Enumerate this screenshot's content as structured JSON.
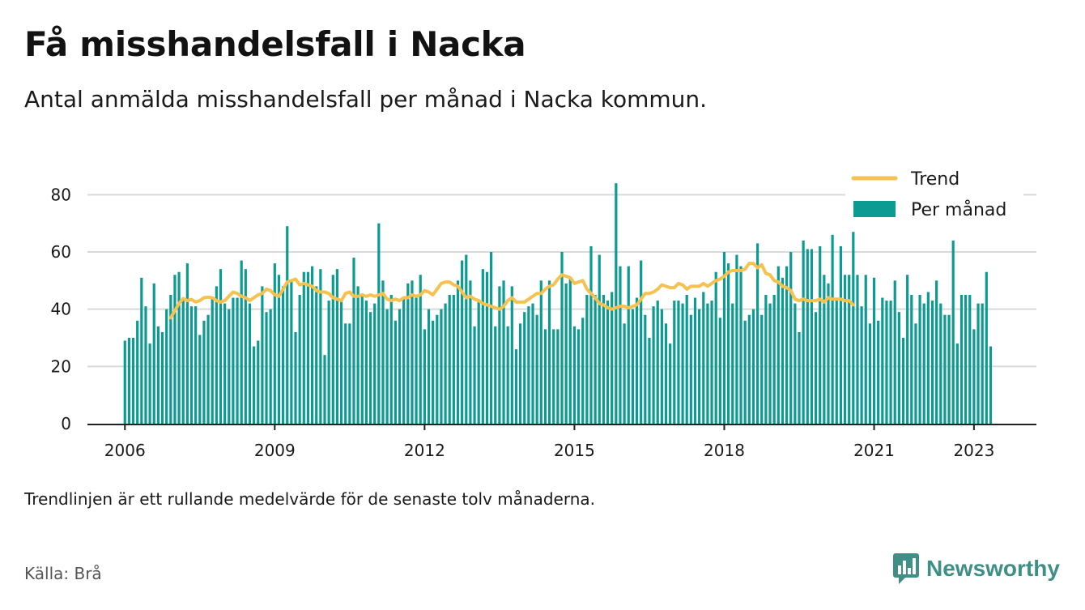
{
  "header": {
    "title": "Få misshandelsfall i Nacka",
    "subtitle": "Antal anmälda misshandelsfall per månad i Nacka kommun."
  },
  "footer": {
    "note": "Trendlinjen är ett rullande medelvärde för de senaste tolv månaderna.",
    "source": "Källa: Brå",
    "brand": "Newsworthy"
  },
  "colors": {
    "bar": "#0b9b92",
    "trend": "#f5c250",
    "grid": "#d9d9d9",
    "axis": "#222222",
    "brand": "#3e8f86"
  },
  "chart_data": {
    "type": "bar",
    "start_month": "2006-01",
    "ylim": [
      0,
      90
    ],
    "yticks": [
      0,
      20,
      40,
      60,
      80
    ],
    "xlim": [
      "2005-04",
      "2024-04"
    ],
    "xticks": [
      {
        "month": "2006-01",
        "label": "2006"
      },
      {
        "month": "2009-01",
        "label": "2009"
      },
      {
        "month": "2012-01",
        "label": "2012"
      },
      {
        "month": "2015-01",
        "label": "2015"
      },
      {
        "month": "2018-01",
        "label": "2018"
      },
      {
        "month": "2021-01",
        "label": "2021"
      },
      {
        "month": "2023-01",
        "label": "2023"
      }
    ],
    "legend": {
      "placement": "top-right",
      "entries": [
        "Trend",
        "Per månad"
      ]
    },
    "grid": true,
    "series": [
      {
        "name": "Per månad",
        "type": "bar",
        "values": [
          29,
          30,
          30,
          36,
          51,
          41,
          28,
          49,
          34,
          32,
          40,
          45,
          52,
          53,
          44,
          56,
          41,
          41,
          31,
          36,
          38,
          44,
          48,
          54,
          42,
          40,
          44,
          44,
          57,
          54,
          42,
          27,
          29,
          48,
          39,
          40,
          56,
          52,
          48,
          69,
          50,
          32,
          45,
          53,
          53,
          55,
          48,
          54,
          24,
          43,
          52,
          54,
          43,
          35,
          35,
          58,
          48,
          45,
          43,
          39,
          42,
          70,
          50,
          40,
          45,
          36,
          40,
          44,
          49,
          50,
          44,
          52,
          33,
          40,
          36,
          38,
          40,
          42,
          45,
          45,
          50,
          57,
          59,
          50,
          34,
          43,
          54,
          53,
          60,
          34,
          48,
          50,
          34,
          48,
          26,
          35,
          39,
          41,
          42,
          38,
          50,
          33,
          50,
          33,
          33,
          60,
          49,
          51,
          34,
          33,
          37,
          45,
          62,
          45,
          59,
          45,
          43,
          46,
          84,
          55,
          35,
          55,
          40,
          44,
          57,
          38,
          30,
          41,
          43,
          40,
          35,
          28,
          43,
          43,
          42,
          45,
          38,
          44,
          40,
          46,
          42,
          43,
          53,
          37,
          60,
          56,
          42,
          59,
          55,
          36,
          38,
          40,
          63,
          38,
          45,
          42,
          45,
          55,
          51,
          55,
          60,
          42,
          32,
          64,
          61,
          61,
          39,
          62,
          52,
          49,
          66,
          43,
          62,
          52,
          52,
          67,
          52,
          41,
          52,
          35,
          51,
          36,
          44,
          43,
          43,
          50,
          39,
          30,
          52,
          45,
          35,
          45,
          42,
          46,
          43,
          50,
          42,
          38,
          38,
          64,
          28,
          45,
          45,
          45,
          33,
          42,
          42,
          53,
          27
        ]
      },
      {
        "name": "Trend",
        "type": "line",
        "start_month": "2006-12",
        "values": [
          37,
          39.5,
          42,
          43.7,
          43,
          43.4,
          42.5,
          43,
          44,
          44.2,
          44,
          43,
          42.5,
          43,
          44.5,
          46,
          45.5,
          44.5,
          44,
          43,
          44,
          45,
          45.5,
          47,
          46.5,
          45,
          44.5,
          47,
          49.5,
          50,
          50.5,
          48.5,
          49,
          48.5,
          48,
          46.5,
          46,
          46,
          45.5,
          44,
          43.5,
          43,
          45.5,
          46,
          44.5,
          44.5,
          45,
          44.5,
          45,
          44.5,
          45,
          45.5,
          43.5,
          43,
          43.5,
          43,
          44,
          44,
          45,
          44.5,
          45,
          46.5,
          46,
          45,
          47,
          49,
          49.5,
          49.5,
          48.5,
          48,
          46,
          44,
          44.5,
          43.5,
          43,
          42,
          41.5,
          41,
          40.5,
          40,
          41,
          43,
          44,
          42.5,
          42.5,
          42.5,
          43.5,
          44.5,
          45.5,
          45.5,
          47,
          48,
          48.5,
          50.5,
          52,
          51.5,
          51,
          49,
          49.5,
          50,
          47,
          45.5,
          44,
          42,
          41.5,
          40.5,
          40,
          40.5,
          41,
          41,
          40.5,
          41,
          41.5,
          43.5,
          45.5,
          45.5,
          46,
          47,
          48.5,
          48,
          47.5,
          47.5,
          49,
          48.5,
          47,
          48,
          48,
          48,
          49,
          48,
          49,
          50,
          50.5,
          51.5,
          53,
          53.5,
          53.5,
          53.5,
          54,
          56,
          56,
          54.5,
          55.5,
          52.5,
          52,
          50,
          49.5,
          48,
          47.5,
          46.5,
          43.5,
          43,
          43.5,
          43,
          43,
          43,
          43.5,
          42.5,
          44,
          43.5,
          43.5,
          43.5,
          43,
          43,
          41.5
        ]
      }
    ]
  }
}
